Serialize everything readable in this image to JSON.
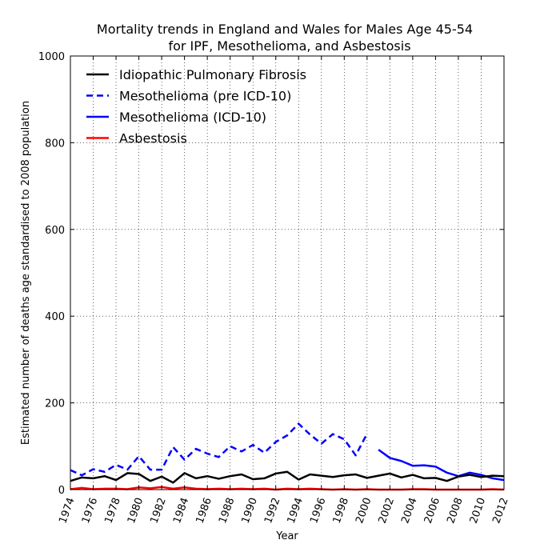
{
  "chart_data": {
    "type": "line",
    "title": "Mortality trends in England and Wales for Males Age 45-54",
    "subtitle": "for IPF, Mesothelioma, and Asbestosis",
    "xlabel": "Year",
    "ylabel": "Estimated number of deaths age standardised to 2008 population",
    "xlim": [
      1974,
      2012
    ],
    "ylim": [
      0,
      1000
    ],
    "x_ticks": [
      "1974",
      "1976",
      "1978",
      "1980",
      "1982",
      "1984",
      "1986",
      "1988",
      "1990",
      "1992",
      "1994",
      "1996",
      "1998",
      "2000",
      "2002",
      "2004",
      "2006",
      "2008",
      "2010",
      "2012"
    ],
    "y_ticks": [
      "0",
      "200",
      "400",
      "600",
      "800",
      "1000"
    ],
    "grid": true,
    "legend_position": "top-left",
    "series": [
      {
        "name": "Idiopathic Pulmonary Fibrosis",
        "color": "#000000",
        "style": "solid",
        "x": [
          1974,
          1975,
          1976,
          1977,
          1978,
          1979,
          1980,
          1981,
          1982,
          1983,
          1984,
          1985,
          1986,
          1987,
          1988,
          1989,
          1990,
          1991,
          1992,
          1993,
          1994,
          1995,
          1996,
          1997,
          1998,
          1999,
          2000,
          2001,
          2002,
          2003,
          2004,
          2005,
          2006,
          2007,
          2008,
          2009,
          2010,
          2011,
          2012
        ],
        "y": [
          20,
          28,
          26,
          31,
          22,
          38,
          36,
          20,
          30,
          16,
          38,
          26,
          31,
          25,
          31,
          35,
          24,
          26,
          37,
          41,
          23,
          35,
          32,
          29,
          33,
          35,
          27,
          32,
          37,
          28,
          34,
          26,
          27,
          20,
          30,
          34,
          29,
          32,
          31
        ]
      },
      {
        "name": "Mesothelioma (pre ICD-10)",
        "color": "#0000ff",
        "style": "dashed",
        "x": [
          1974,
          1975,
          1976,
          1977,
          1978,
          1979,
          1980,
          1981,
          1982,
          1983,
          1984,
          1985,
          1986,
          1987,
          1988,
          1989,
          1990,
          1991,
          1992,
          1993,
          1994,
          1995,
          1996,
          1997,
          1998,
          1999,
          2000
        ],
        "y": [
          45,
          33,
          47,
          41,
          57,
          46,
          77,
          46,
          46,
          98,
          69,
          94,
          83,
          75,
          100,
          88,
          103,
          85,
          110,
          125,
          152,
          127,
          106,
          128,
          116,
          79,
          129
        ]
      },
      {
        "name": "Mesothelioma (ICD-10)",
        "color": "#0000ff",
        "style": "solid",
        "x": [
          2001,
          2002,
          2003,
          2004,
          2005,
          2006,
          2007,
          2008,
          2009,
          2010,
          2011,
          2012
        ],
        "y": [
          92,
          73,
          66,
          55,
          56,
          53,
          39,
          31,
          39,
          34,
          26,
          22
        ]
      },
      {
        "name": "Asbestosis",
        "color": "#ff0000",
        "style": "solid",
        "x": [
          1974,
          1975,
          1976,
          1977,
          1978,
          1979,
          1980,
          1981,
          1982,
          1983,
          1984,
          1985,
          1986,
          1987,
          1988,
          1989,
          1990,
          1991,
          1992,
          1993,
          1994,
          1995,
          1996,
          1997,
          1998,
          1999,
          2000,
          2001,
          2002,
          2003,
          2004,
          2005,
          2006,
          2007,
          2008,
          2009,
          2010,
          2011,
          2012
        ],
        "y": [
          1,
          4,
          1,
          2,
          2,
          1,
          5,
          3,
          6,
          2,
          5,
          2,
          1,
          2,
          1,
          2,
          1,
          2,
          0,
          2,
          1,
          2,
          1,
          0,
          1,
          0,
          1,
          0,
          0,
          0,
          1,
          1,
          0,
          0,
          0,
          0,
          0,
          1,
          0
        ]
      }
    ]
  }
}
